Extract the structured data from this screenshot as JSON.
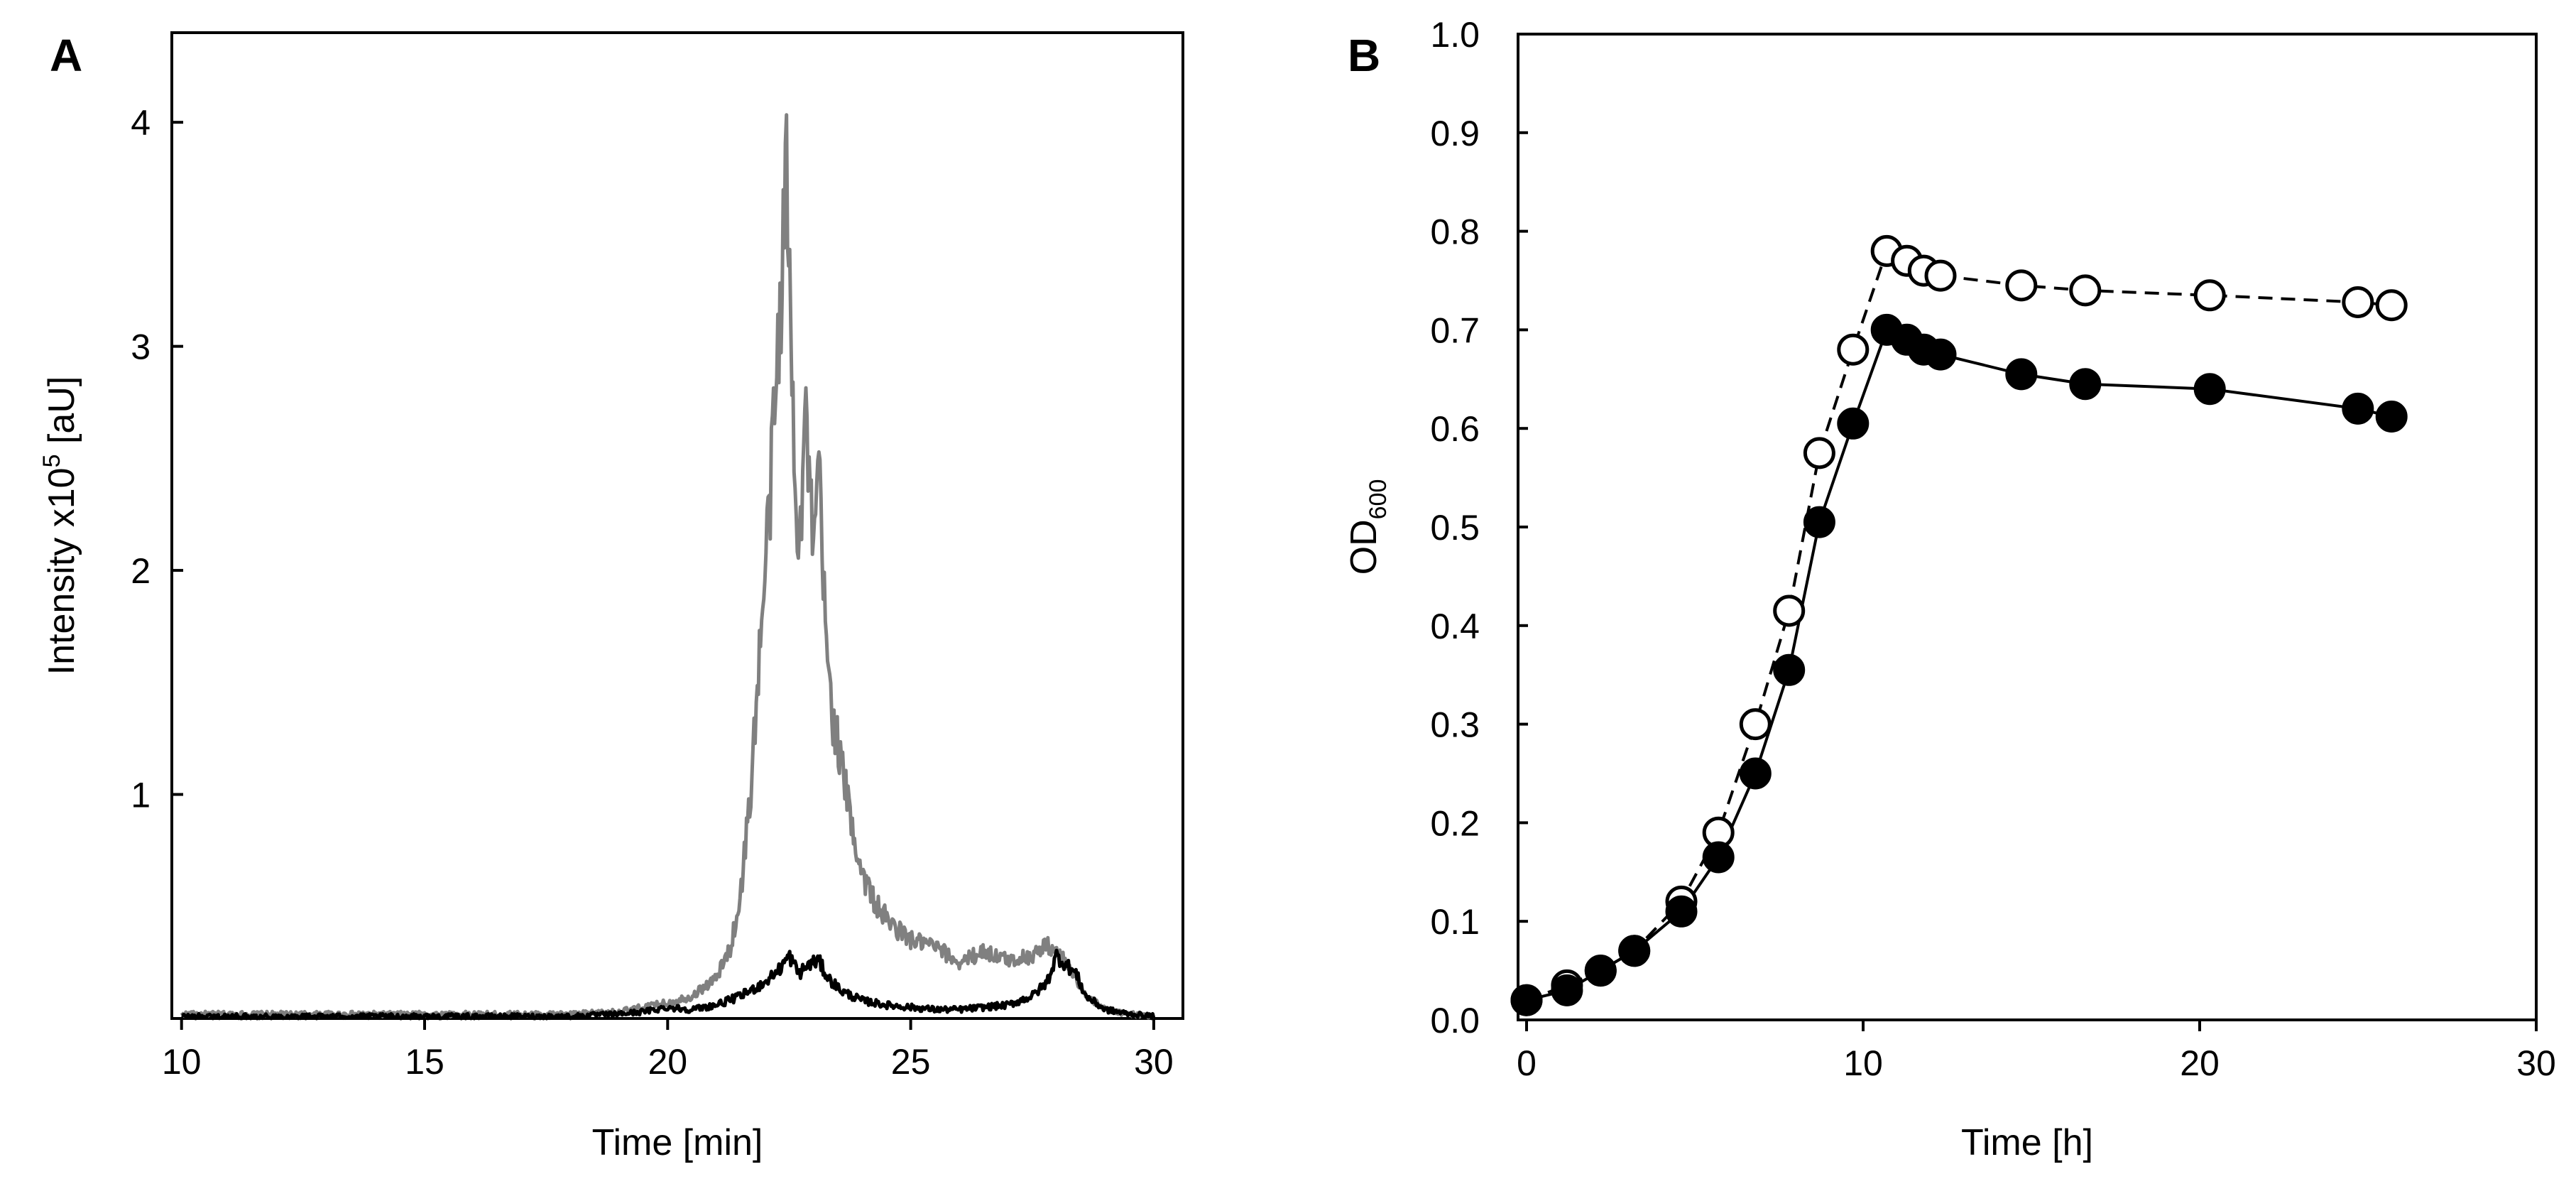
{
  "chart_data": [
    {
      "panel": "A",
      "type": "line",
      "title": "",
      "xlabel": "Time [min]",
      "ylabel": "Intensity x10",
      "ylabel_superscript": "5",
      "ylabel_suffix": " [aU]",
      "xlim": [
        9.8,
        30.6
      ],
      "ylim": [
        0,
        4.4
      ],
      "xticks": [
        10,
        15,
        20,
        25,
        30
      ],
      "yticks": [
        1,
        2,
        3,
        4
      ],
      "series": [
        {
          "name": "gray trace",
          "color": "#808080",
          "x": [
            10,
            12,
            14,
            16,
            18,
            19,
            19.5,
            20,
            20.5,
            21,
            21.3,
            21.5,
            21.7,
            21.9,
            22.1,
            22.3,
            22.45,
            22.55,
            22.7,
            22.85,
            23.0,
            23.1,
            23.25,
            23.4,
            23.6,
            23.8,
            24.0,
            24.3,
            24.6,
            25.0,
            25.5,
            26.0,
            26.5,
            27.0,
            27.5,
            27.8,
            28.0,
            28.3,
            28.6,
            29.0,
            29.5,
            30
          ],
          "y": [
            0.02,
            0.02,
            0.02,
            0.02,
            0.02,
            0.03,
            0.05,
            0.07,
            0.1,
            0.18,
            0.32,
            0.55,
            1.0,
            1.65,
            2.3,
            3.1,
            3.8,
            2.9,
            2.1,
            2.7,
            2.0,
            2.5,
            1.7,
            1.35,
            1.1,
            0.85,
            0.65,
            0.5,
            0.42,
            0.35,
            0.32,
            0.25,
            0.3,
            0.26,
            0.28,
            0.33,
            0.3,
            0.22,
            0.1,
            0.04,
            0.02,
            0.01
          ]
        },
        {
          "name": "black trace",
          "color": "#000000",
          "x": [
            10,
            12,
            14,
            16,
            18,
            19,
            19.5,
            20,
            20.5,
            21,
            21.5,
            22,
            22.3,
            22.5,
            22.7,
            22.9,
            23.1,
            23.3,
            23.6,
            24.0,
            24.5,
            25.0,
            25.5,
            26.0,
            26.5,
            27.0,
            27.5,
            27.8,
            28.0,
            28.2,
            28.4,
            28.6,
            29.0,
            29.5,
            30
          ],
          "y": [
            0.01,
            0.01,
            0.01,
            0.01,
            0.01,
            0.02,
            0.03,
            0.05,
            0.04,
            0.06,
            0.1,
            0.16,
            0.22,
            0.28,
            0.2,
            0.24,
            0.26,
            0.18,
            0.12,
            0.08,
            0.06,
            0.05,
            0.04,
            0.04,
            0.05,
            0.06,
            0.1,
            0.16,
            0.28,
            0.24,
            0.2,
            0.1,
            0.04,
            0.02,
            0.01
          ]
        }
      ]
    },
    {
      "panel": "B",
      "type": "scatter",
      "title": "",
      "xlabel": "Time [h]",
      "ylabel": "OD",
      "ylabel_subscript": "600",
      "xlim": [
        0,
        30
      ],
      "ylim": [
        0,
        1
      ],
      "xticks": [
        0,
        10,
        20,
        30
      ],
      "yticks": [
        0,
        0.1,
        0.2,
        0.3,
        0.4,
        0.5,
        0.6,
        0.7,
        0.8,
        0.9,
        1
      ],
      "ytick_labels": [
        "0.0",
        "0.1",
        "0.2",
        "0.3",
        "0.4",
        "0.5",
        "0.6",
        "0.7",
        "0.8",
        "0.9",
        "1.0"
      ],
      "series": [
        {
          "name": "filled circles (solid line)",
          "marker": "filled",
          "line": "solid",
          "x": [
            0,
            1.2,
            2.2,
            3.2,
            4.6,
            5.7,
            6.8,
            7.8,
            8.7,
            9.7,
            10.7,
            11.3,
            11.8,
            12.3,
            14.7,
            16.6,
            20.3,
            24.7,
            25.7
          ],
          "y": [
            0.02,
            0.03,
            0.05,
            0.07,
            0.11,
            0.165,
            0.25,
            0.355,
            0.505,
            0.605,
            0.7,
            0.69,
            0.68,
            0.675,
            0.655,
            0.645,
            0.64,
            0.62,
            0.612
          ]
        },
        {
          "name": "open circles (dashed line)",
          "marker": "open",
          "line": "dashed",
          "x": [
            0,
            1.2,
            2.2,
            3.2,
            4.6,
            5.7,
            6.8,
            7.8,
            8.7,
            9.7,
            10.7,
            11.3,
            11.8,
            12.3,
            14.7,
            16.6,
            20.3,
            24.7,
            25.7
          ],
          "y": [
            0.02,
            0.035,
            0.05,
            0.07,
            0.12,
            0.19,
            0.3,
            0.415,
            0.575,
            0.68,
            0.78,
            0.77,
            0.76,
            0.755,
            0.745,
            0.74,
            0.735,
            0.728,
            0.725
          ]
        }
      ]
    }
  ]
}
